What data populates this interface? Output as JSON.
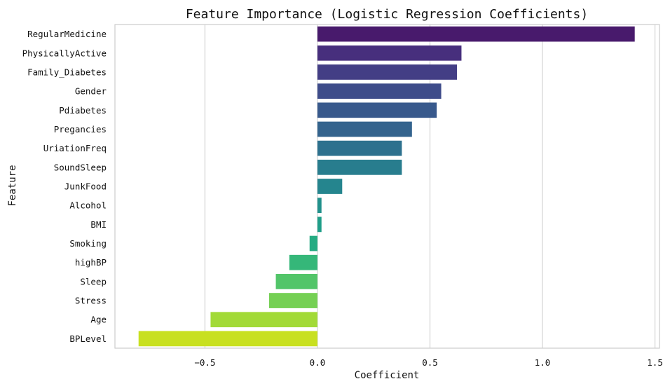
{
  "chart_data": {
    "type": "bar",
    "orientation": "horizontal",
    "title": "Feature Importance (Logistic Regression Coefficients)",
    "xlabel": "Coefficient",
    "ylabel": "Feature",
    "xlim": [
      -0.9,
      1.52
    ],
    "xticks": [
      -0.5,
      0.0,
      0.5,
      1.0,
      1.5
    ],
    "xtick_labels": [
      "−0.5",
      "0.0",
      "0.5",
      "1.0",
      "1.5"
    ],
    "grid": "vertical",
    "colormap": "viridis",
    "categories": [
      "RegularMedicine",
      "PhysicallyActive",
      "Family_Diabetes",
      "Gender",
      "Pdiabetes",
      "Pregancies",
      "UriationFreq",
      "SoundSleep",
      "JunkFood",
      "Alcohol",
      "BMI",
      "Smoking",
      "highBP",
      "Sleep",
      "Stress",
      "Age",
      "BPLevel"
    ],
    "values": [
      1.41,
      0.64,
      0.62,
      0.55,
      0.53,
      0.42,
      0.375,
      0.375,
      0.11,
      0.018,
      0.018,
      -0.035,
      -0.125,
      -0.185,
      -0.215,
      -0.475,
      -0.795
    ],
    "colors": [
      "#481a6c",
      "#472f7d",
      "#433e85",
      "#3e4c8a",
      "#38598c",
      "#33638d",
      "#2d718e",
      "#287d8e",
      "#25858e",
      "#21918c",
      "#1f9e89",
      "#25ab82",
      "#35b779",
      "#52c569",
      "#75d054",
      "#a2da37",
      "#c8e020"
    ]
  }
}
